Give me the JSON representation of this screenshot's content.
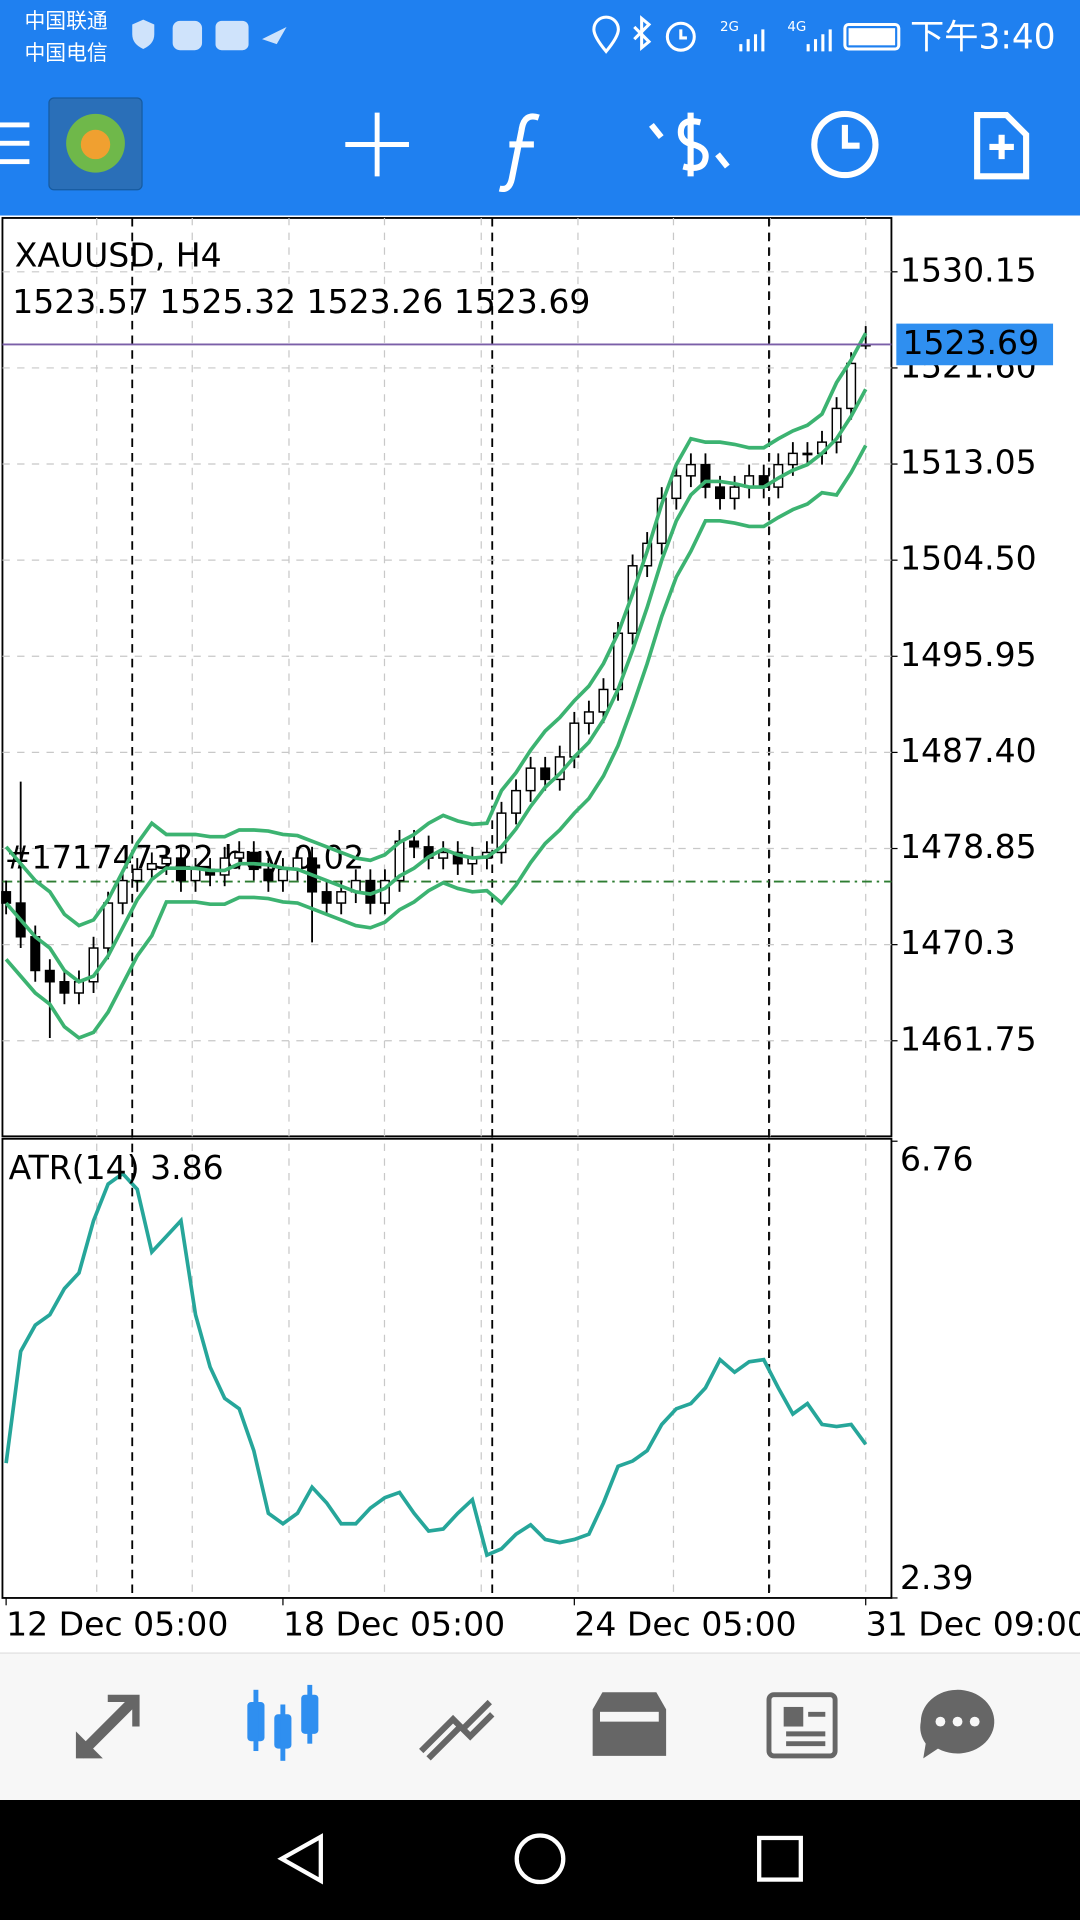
{
  "status_bar": {
    "carrier_1": "中国联通",
    "carrier_2": "中国电信",
    "network_1": "2G",
    "network_2": "4G",
    "time": "下午3:40"
  },
  "chart_data": [
    {
      "type": "candlestick",
      "title": "XAUUSD, H4",
      "subtitle": "1523.57 1525.32 1523.26 1523.69",
      "categories": [
        "12 Dec 05:00",
        null,
        null,
        null,
        null,
        null,
        null,
        null,
        null,
        null,
        null,
        null,
        null,
        null,
        null,
        null,
        null,
        null,
        null,
        "18 Dec 05:00",
        null,
        null,
        null,
        null,
        null,
        null,
        null,
        null,
        null,
        null,
        null,
        null,
        null,
        null,
        null,
        null,
        null,
        null,
        null,
        "24 Dec 05:00",
        null,
        null,
        null,
        null,
        null,
        null,
        null,
        null,
        null,
        null,
        null,
        null,
        null,
        null,
        null,
        null,
        null,
        null,
        null,
        "31 Dec 09:00"
      ],
      "open": [
        1475,
        1474,
        1471,
        1468,
        1467,
        1466,
        1467,
        1470,
        1474,
        1476,
        1477,
        1477.5,
        1478,
        1476,
        1477,
        1476.5,
        1478,
        1478.5,
        1477,
        1476,
        1477,
        1478,
        1475,
        1474,
        1475,
        1476,
        1474,
        1476,
        1479.5,
        1479,
        1478,
        1478.5,
        1477.5,
        1478,
        1478.5,
        1482,
        1484,
        1486,
        1485,
        1487,
        1490,
        1491,
        1493,
        1498,
        1504,
        1506,
        1510,
        1512,
        1513,
        1511,
        1510,
        1511,
        1512,
        1511,
        1513,
        1514,
        1514,
        1515,
        1518,
        1523.57
      ],
      "high": [
        1476,
        1484.8,
        1472,
        1469,
        1468,
        1468,
        1471,
        1475,
        1477,
        1478,
        1478.5,
        1479,
        1479,
        1478,
        1478,
        1479,
        1479.5,
        1479.5,
        1478,
        1478,
        1479,
        1479,
        1476,
        1476,
        1477,
        1477,
        1477,
        1480.5,
        1480.5,
        1480,
        1479.5,
        1479.5,
        1479,
        1479.5,
        1483,
        1485,
        1487,
        1487,
        1488,
        1491,
        1492,
        1494,
        1499,
        1505,
        1507,
        1511,
        1513,
        1514,
        1514,
        1512,
        1512,
        1513,
        1513,
        1514,
        1515,
        1515,
        1516,
        1519,
        1523,
        1525.32
      ],
      "low": [
        1473,
        1470,
        1467,
        1462,
        1465,
        1465,
        1466,
        1469,
        1473,
        1475,
        1476,
        1476.5,
        1475,
        1475,
        1475.5,
        1475.5,
        1477,
        1476,
        1475,
        1475,
        1476,
        1470.5,
        1473,
        1473,
        1474,
        1473,
        1473,
        1475,
        1478,
        1477,
        1477,
        1476.5,
        1476.5,
        1477,
        1477.5,
        1481,
        1483,
        1484,
        1484,
        1486,
        1489,
        1490,
        1492,
        1497,
        1503,
        1505,
        1509,
        1511,
        1510,
        1509,
        1509,
        1510,
        1510,
        1510,
        1512,
        1513,
        1513,
        1514,
        1517,
        1523.26
      ],
      "close": [
        1474,
        1471,
        1468,
        1467,
        1466,
        1467,
        1470,
        1474,
        1476,
        1477,
        1477.5,
        1478,
        1476,
        1477,
        1476.5,
        1478,
        1478.5,
        1477,
        1476,
        1477,
        1478,
        1475,
        1474,
        1475,
        1476,
        1474,
        1476,
        1479.5,
        1479,
        1478,
        1478.5,
        1477.5,
        1478,
        1478.5,
        1482,
        1484,
        1486,
        1485,
        1487,
        1490,
        1491,
        1493,
        1498,
        1504,
        1506,
        1510,
        1512,
        1513,
        1511,
        1510,
        1511,
        1512,
        1511,
        1513,
        1514,
        1514,
        1515,
        1518,
        1522,
        1523.69
      ],
      "up_color": "#ffffff",
      "down_color": "#000000",
      "bands": {
        "color": "#3cb371",
        "upper": [
          1479,
          1477.5,
          1476,
          1475,
          1473,
          1472,
          1472.5,
          1474.3,
          1476.8,
          1479.3,
          1481.1,
          1480.1,
          1480.1,
          1480.1,
          1479.9,
          1479.9,
          1480.5,
          1480.5,
          1480.4,
          1480.1,
          1480,
          1479.5,
          1479,
          1478.5,
          1478,
          1477.8,
          1478.3,
          1479.4,
          1480.1,
          1481.1,
          1481.8,
          1481.3,
          1481,
          1481.1,
          1484,
          1485.6,
          1487.6,
          1489.3,
          1490.5,
          1492,
          1493.3,
          1495.3,
          1498,
          1501.5,
          1505.3,
          1509.5,
          1513,
          1515.3,
          1515,
          1515,
          1514.8,
          1514.5,
          1514.5,
          1515.3,
          1516,
          1516.5,
          1517.5,
          1520.3,
          1522.3,
          1524.7
        ],
        "middle": [
          1474,
          1472.5,
          1471,
          1470,
          1468,
          1467,
          1467.5,
          1469.3,
          1471.8,
          1474.3,
          1476.1,
          1477.1,
          1477.1,
          1477.1,
          1476.9,
          1476.9,
          1477.5,
          1477.5,
          1477.4,
          1477.1,
          1477,
          1476.5,
          1476,
          1475.5,
          1475,
          1474.8,
          1475.3,
          1476.4,
          1477.1,
          1478.1,
          1478.8,
          1478.3,
          1478,
          1478.1,
          1479,
          1480.6,
          1482.6,
          1484.3,
          1485.5,
          1487,
          1488.3,
          1490.3,
          1493,
          1496.5,
          1500.3,
          1504.5,
          1508,
          1510.3,
          1511.5,
          1511.5,
          1511.3,
          1511,
          1511,
          1511.8,
          1512.5,
          1513,
          1514,
          1515.3,
          1517.3,
          1519.7
        ],
        "lower": [
          1469,
          1467.5,
          1466,
          1465,
          1463,
          1462,
          1462.5,
          1464.3,
          1466.8,
          1469.3,
          1471.1,
          1474.1,
          1474.1,
          1474.1,
          1473.9,
          1473.9,
          1474.5,
          1474.5,
          1474.4,
          1474.1,
          1474,
          1473.5,
          1473,
          1472.5,
          1472,
          1471.8,
          1472.3,
          1473.4,
          1474.1,
          1475.1,
          1475.8,
          1475.3,
          1475,
          1475.1,
          1474,
          1475.6,
          1477.6,
          1479.3,
          1480.5,
          1482,
          1483.3,
          1485.3,
          1488,
          1491.5,
          1495.3,
          1499.5,
          1503,
          1505.3,
          1508,
          1508,
          1507.8,
          1507.5,
          1507.5,
          1508.3,
          1509,
          1509.5,
          1510.5,
          1510.3,
          1512.3,
          1514.7
        ]
      },
      "ylim": [
        1453.25,
        1534.94
      ],
      "yticks": [
        1461.75,
        1470.3,
        {
          "value": 1478.85,
          "label": "1478.85"
        },
        {
          "value": 1487.4,
          "label": "1487.40"
        },
        1495.95,
        {
          "value": 1504.5,
          "label": "1504.50"
        },
        1513.05,
        {
          "value": 1521.6,
          "label": "1521.60"
        },
        1530.15
      ],
      "grid": true,
      "last_price": 1523.69,
      "last_price_color": "#7b5fa8",
      "order_line": {
        "label": "#171747322 buy 0.02",
        "price": 1475.91,
        "color": "#2e7d32"
      }
    },
    {
      "type": "line",
      "title": "ATR(14) 3.86",
      "color": "#26a69a",
      "values": [
        3.68,
        4.75,
        5.0,
        5.1,
        5.35,
        5.5,
        6.0,
        6.35,
        6.45,
        6.3,
        5.7,
        5.85,
        6.0,
        5.1,
        4.6,
        4.3,
        4.2,
        3.8,
        3.2,
        3.1,
        3.2,
        3.45,
        3.3,
        3.1,
        3.1,
        3.25,
        3.35,
        3.4,
        3.2,
        3.03,
        3.05,
        3.2,
        3.33,
        2.8,
        2.86,
        3.0,
        3.09,
        2.95,
        2.92,
        2.95,
        3.0,
        3.3,
        3.65,
        3.7,
        3.8,
        4.05,
        4.2,
        4.25,
        4.4,
        4.67,
        4.55,
        4.65,
        4.67,
        4.4,
        4.15,
        4.25,
        4.05,
        4.03,
        4.05,
        3.86
      ],
      "ylim": [
        2.39,
        6.76
      ],
      "yticks": [
        2.39,
        6.76
      ]
    }
  ]
}
